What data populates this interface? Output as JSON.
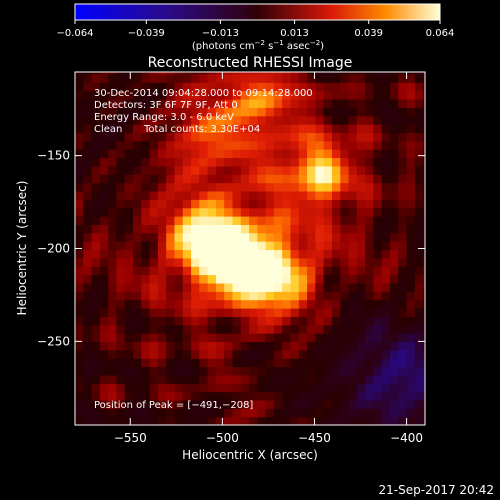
{
  "chart_data": {
    "type": "heatmap",
    "title": "Reconstructed RHESSI Image",
    "xlabel": "Heliocentric X (arcsec)",
    "ylabel": "Heliocentric Y (arcsec)",
    "xlim": [
      -580,
      -390
    ],
    "ylim": [
      -295,
      -105
    ],
    "x_ticks": [
      -550,
      -500,
      -450,
      -400
    ],
    "y_ticks": [
      -250,
      -200,
      -150
    ],
    "x_tick_labels": [
      "−550",
      "−500",
      "−450",
      "−400"
    ],
    "y_tick_labels": [
      "−250",
      "−200",
      "−150"
    ],
    "colorbar": {
      "ticks": [
        -0.064,
        -0.039,
        -0.013,
        0.013,
        0.039,
        0.064
      ],
      "tick_labels": [
        "−0.064",
        "−0.039",
        "−0.013",
        "0.013",
        "0.039",
        "0.064"
      ],
      "unit_label": "(photons cm",
      "unit_exp1": "−2",
      "unit_mid": " s",
      "unit_exp2": "−1",
      "unit_mid2": " asec",
      "unit_exp3": "−2",
      "unit_end": ")"
    },
    "annotations": {
      "time_range": "30-Dec-2014 09:04:28.000 to 09:14:28.000",
      "detectors": "Detectors: 3F 6F 7F 9F, Att 0",
      "energy": "Energy Range: 3.0 - 6.0 keV",
      "method": "Clean",
      "counts": "Total counts: 3.30E+04",
      "peak": "Position of Peak = [−491,−208]"
    },
    "sources": [
      {
        "x": -491,
        "y": -208,
        "intensity": 0.064
      },
      {
        "x": -510,
        "y": -195,
        "intensity": 0.05
      },
      {
        "x": -468,
        "y": -215,
        "intensity": 0.042
      },
      {
        "x": -447,
        "y": -158,
        "intensity": 0.042
      },
      {
        "x": -478,
        "y": -118,
        "intensity": 0.036
      },
      {
        "x": -510,
        "y": -140,
        "intensity": 0.026
      }
    ],
    "footer_date": "21-Sep-2017 20:42"
  }
}
